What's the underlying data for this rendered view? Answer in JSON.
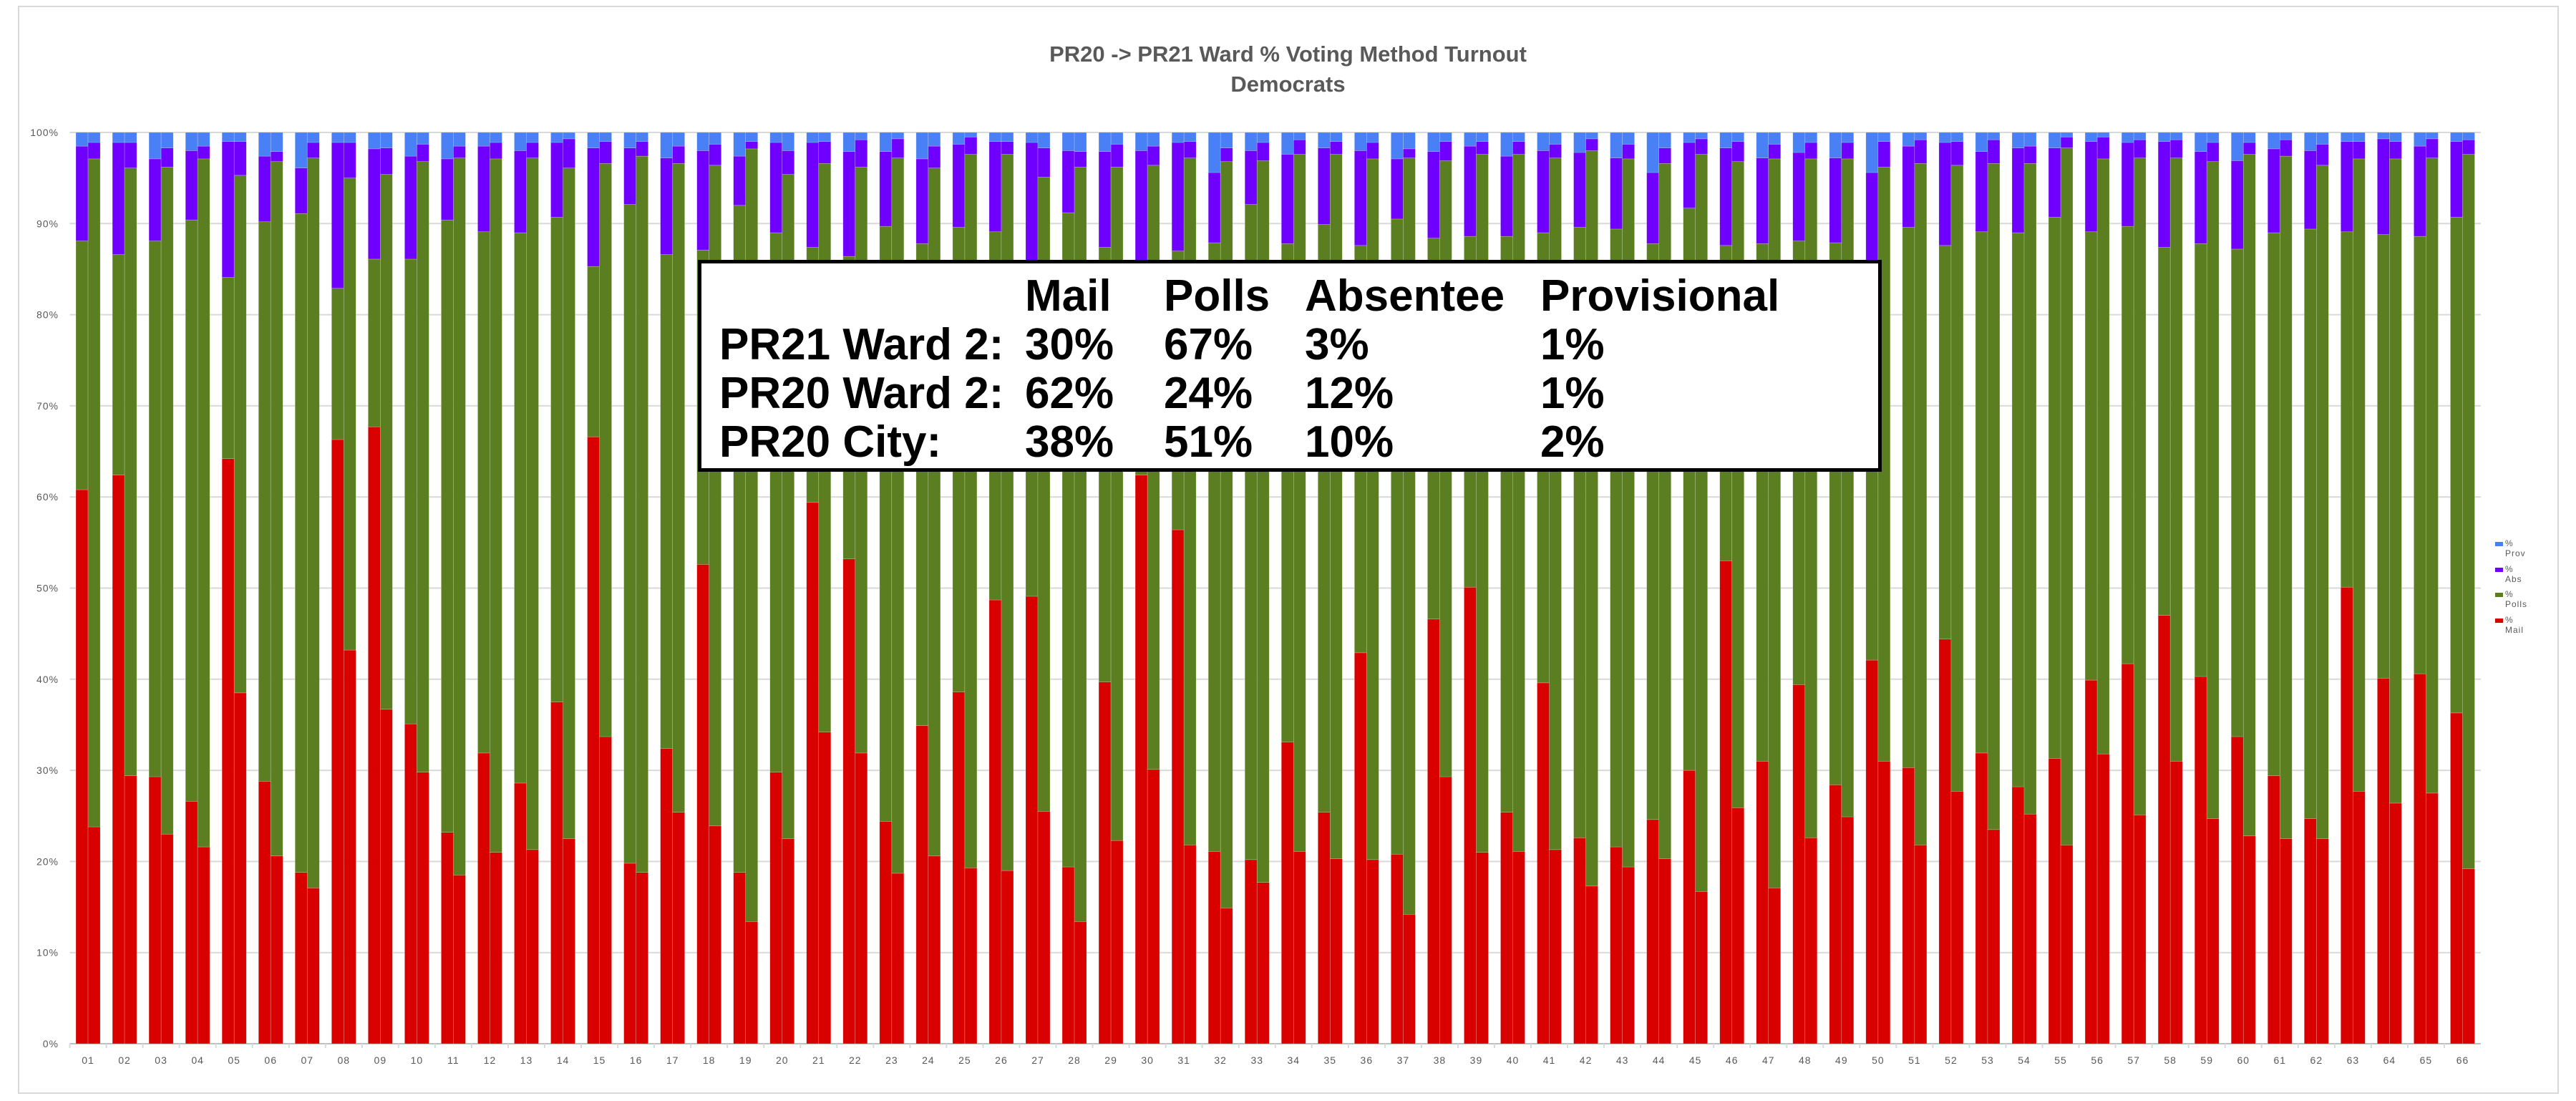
{
  "chart_data": {
    "type": "bar",
    "stacked": true,
    "title": "PR20 -> PR21 Ward % Voting Method Turnout",
    "subtitle": "Democrats",
    "xlabel": "",
    "ylabel": "",
    "ylim": [
      0,
      100
    ],
    "y_ticks": [
      "0%",
      "10%",
      "20%",
      "30%",
      "40%",
      "50%",
      "60%",
      "70%",
      "80%",
      "90%",
      "100%"
    ],
    "grid": true,
    "legend_position": "right",
    "bar_groups": [
      "PR20",
      "PR21"
    ],
    "categories": [
      "01",
      "02",
      "03",
      "04",
      "05",
      "06",
      "07",
      "08",
      "09",
      "10",
      "11",
      "12",
      "13",
      "14",
      "15",
      "16",
      "17",
      "18",
      "19",
      "20",
      "21",
      "22",
      "23",
      "24",
      "25",
      "26",
      "27",
      "28",
      "29",
      "30",
      "31",
      "32",
      "33",
      "34",
      "35",
      "36",
      "37",
      "38",
      "39",
      "40",
      "41",
      "42",
      "43",
      "44",
      "45",
      "46",
      "47",
      "48",
      "49",
      "50",
      "51",
      "52",
      "53",
      "54",
      "55",
      "56",
      "57",
      "58",
      "59",
      "60",
      "61",
      "62",
      "63",
      "64",
      "65",
      "66"
    ],
    "series": [
      {
        "name": "% Mail",
        "color": "#d90000",
        "values": [
          [
            60.8,
            23.8
          ],
          [
            62.4,
            29.4
          ],
          [
            29.3,
            23.0
          ],
          [
            26.6,
            21.6
          ],
          [
            64.2,
            38.5
          ],
          [
            28.8,
            20.6
          ],
          [
            18.8,
            17.1
          ],
          [
            66.3,
            43.2
          ],
          [
            67.7,
            36.7
          ],
          [
            35.1,
            29.8
          ],
          [
            23.2,
            18.5
          ],
          [
            31.9,
            21.0
          ],
          [
            28.6,
            21.3
          ],
          [
            37.5,
            22.5
          ],
          [
            66.6,
            33.7
          ],
          [
            19.8,
            18.8
          ],
          [
            32.4,
            25.4
          ],
          [
            52.6,
            23.9
          ],
          [
            18.8,
            13.4
          ],
          [
            29.8,
            22.5
          ],
          [
            59.4,
            34.2
          ],
          [
            53.2,
            31.9
          ],
          [
            24.4,
            18.7
          ],
          [
            34.9,
            20.6
          ],
          [
            38.6,
            19.3
          ],
          [
            48.7,
            19.0
          ],
          [
            49.1,
            25.5
          ],
          [
            19.4,
            13.4
          ],
          [
            39.7,
            22.3
          ],
          [
            62.4,
            30.1
          ],
          [
            56.4,
            21.8
          ],
          [
            21.1,
            14.9
          ],
          [
            20.2,
            17.7
          ],
          [
            33.1,
            21.1
          ],
          [
            25.4,
            20.3
          ],
          [
            42.9,
            20.2
          ],
          [
            20.8,
            14.2
          ],
          [
            46.6,
            29.3
          ],
          [
            50.1,
            21.0
          ],
          [
            25.4,
            21.1
          ],
          [
            39.6,
            21.3
          ],
          [
            22.6,
            17.3
          ],
          [
            21.6,
            19.4
          ],
          [
            24.6,
            20.3
          ],
          [
            30.0,
            16.7
          ],
          [
            53.0,
            25.9
          ],
          [
            31.0,
            17.1
          ],
          [
            39.4,
            22.6
          ],
          [
            28.4,
            24.9
          ],
          [
            42.1,
            31.0
          ],
          [
            30.3,
            21.8
          ],
          [
            44.4,
            27.7
          ],
          [
            31.9,
            23.5
          ],
          [
            28.2,
            25.2
          ],
          [
            31.3,
            21.8
          ],
          [
            39.9,
            31.8
          ],
          [
            41.7,
            25.1
          ],
          [
            47.0,
            31.0
          ],
          [
            40.3,
            24.7
          ],
          [
            33.7,
            22.8
          ],
          [
            29.4,
            22.5
          ],
          [
            24.7,
            22.5
          ],
          [
            50.1,
            27.7
          ],
          [
            40.1,
            26.4
          ],
          [
            40.6,
            27.5
          ],
          [
            36.3,
            19.2
          ]
        ]
      },
      {
        "name": "% Polls",
        "color": "#5b7f20",
        "values": [
          [
            27.3,
            73.3
          ],
          [
            24.2,
            66.7
          ],
          [
            58.8,
            73.2
          ],
          [
            63.8,
            75.5
          ],
          [
            19.9,
            56.8
          ],
          [
            61.4,
            76.2
          ],
          [
            72.3,
            80.1
          ],
          [
            16.6,
            51.8
          ],
          [
            18.4,
            58.7
          ],
          [
            51.0,
            67.0
          ],
          [
            67.2,
            78.7
          ],
          [
            57.2,
            76.1
          ],
          [
            60.4,
            75.9
          ],
          [
            53.2,
            73.6
          ],
          [
            18.7,
            62.9
          ],
          [
            72.3,
            78.6
          ],
          [
            54.2,
            71.2
          ],
          [
            34.5,
            72.5
          ],
          [
            73.2,
            84.8
          ],
          [
            59.2,
            72.9
          ],
          [
            28.0,
            62.4
          ],
          [
            33.2,
            64.3
          ],
          [
            65.3,
            78.5
          ],
          [
            52.9,
            75.5
          ],
          [
            51.0,
            78.3
          ],
          [
            40.4,
            78.6
          ],
          [
            34.9,
            69.6
          ],
          [
            71.8,
            82.8
          ],
          [
            47.7,
            73.9
          ],
          [
            20.6,
            66.3
          ],
          [
            30.6,
            75.4
          ],
          [
            66.8,
            81.9
          ],
          [
            71.9,
            79.2
          ],
          [
            54.7,
            76.5
          ],
          [
            64.5,
            77.3
          ],
          [
            44.7,
            76.9
          ],
          [
            69.7,
            83.0
          ],
          [
            41.8,
            67.6
          ],
          [
            38.5,
            76.6
          ],
          [
            63.2,
            76.5
          ],
          [
            49.4,
            75.9
          ],
          [
            67.0,
            80.7
          ],
          [
            67.8,
            77.7
          ],
          [
            63.2,
            76.3
          ],
          [
            61.7,
            80.9
          ],
          [
            34.6,
            70.9
          ],
          [
            56.8,
            80.0
          ],
          [
            48.7,
            74.5
          ],
          [
            59.5,
            72.2
          ],
          [
            42.9,
            65.2
          ],
          [
            59.3,
            74.8
          ],
          [
            43.2,
            68.7
          ],
          [
            57.2,
            73.1
          ],
          [
            60.8,
            71.4
          ],
          [
            59.4,
            76.5
          ],
          [
            49.2,
            65.3
          ],
          [
            48.0,
            72.1
          ],
          [
            40.4,
            66.2
          ],
          [
            47.5,
            72.1
          ],
          [
            53.5,
            74.8
          ],
          [
            59.6,
            74.9
          ],
          [
            64.7,
            73.9
          ],
          [
            39.0,
            69.4
          ],
          [
            48.7,
            70.7
          ],
          [
            48.0,
            69.7
          ],
          [
            54.4,
            78.4
          ]
        ]
      },
      {
        "name": "% Abs",
        "color": "#6f00ff",
        "values": [
          [
            10.4,
            1.8
          ],
          [
            12.3,
            2.8
          ],
          [
            9.0,
            2.1
          ],
          [
            7.6,
            1.4
          ],
          [
            14.9,
            3.7
          ],
          [
            7.2,
            1.1
          ],
          [
            5.0,
            1.7
          ],
          [
            16.0,
            3.9
          ],
          [
            12.1,
            2.9
          ],
          [
            11.3,
            1.9
          ],
          [
            6.7,
            1.3
          ],
          [
            9.4,
            1.8
          ],
          [
            9.0,
            1.7
          ],
          [
            8.2,
            3.2
          ],
          [
            13.0,
            2.4
          ],
          [
            6.2,
            1.6
          ],
          [
            10.6,
            1.9
          ],
          [
            10.9,
            2.3
          ],
          [
            5.4,
            0.8
          ],
          [
            9.9,
            2.6
          ],
          [
            11.5,
            2.4
          ],
          [
            11.5,
            3.0
          ],
          [
            8.2,
            2.1
          ],
          [
            9.3,
            2.4
          ],
          [
            9.1,
            1.9
          ],
          [
            9.9,
            1.4
          ],
          [
            14.9,
            3.2
          ],
          [
            6.8,
            1.7
          ],
          [
            10.5,
            2.5
          ],
          [
            15.0,
            2.1
          ],
          [
            11.9,
            1.8
          ],
          [
            7.7,
            1.5
          ],
          [
            5.9,
            2.0
          ],
          [
            9.8,
            1.6
          ],
          [
            8.4,
            1.4
          ],
          [
            10.4,
            1.8
          ],
          [
            6.6,
            1.0
          ],
          [
            9.5,
            2.1
          ],
          [
            9.9,
            1.4
          ],
          [
            8.8,
            1.4
          ],
          [
            9.0,
            1.5
          ],
          [
            8.2,
            1.3
          ],
          [
            7.8,
            1.6
          ],
          [
            7.8,
            1.7
          ],
          [
            7.2,
            1.7
          ],
          [
            10.7,
            2.2
          ],
          [
            9.4,
            1.6
          ],
          [
            9.7,
            1.8
          ],
          [
            9.3,
            1.8
          ],
          [
            10.6,
            2.8
          ],
          [
            8.9,
            2.6
          ],
          [
            11.3,
            2.6
          ],
          [
            8.8,
            2.6
          ],
          [
            9.3,
            1.9
          ],
          [
            7.6,
            1.2
          ],
          [
            9.9,
            2.4
          ],
          [
            9.2,
            2.0
          ],
          [
            11.6,
            2.0
          ],
          [
            10.1,
            2.1
          ],
          [
            9.7,
            1.3
          ],
          [
            9.2,
            1.8
          ],
          [
            8.6,
            2.3
          ],
          [
            9.9,
            1.9
          ],
          [
            10.5,
            1.9
          ],
          [
            9.9,
            2.1
          ],
          [
            8.3,
            1.6
          ]
        ]
      },
      {
        "name": "% Prov",
        "color": "#4a80f5",
        "values": [
          [
            1.5,
            1.1
          ],
          [
            1.1,
            1.1
          ],
          [
            2.9,
            1.7
          ],
          [
            2.0,
            1.5
          ],
          [
            1.0,
            1.0
          ],
          [
            2.6,
            2.1
          ],
          [
            3.9,
            1.1
          ],
          [
            1.1,
            1.1
          ],
          [
            1.8,
            1.7
          ],
          [
            2.6,
            1.3
          ],
          [
            2.9,
            1.5
          ],
          [
            1.5,
            1.1
          ],
          [
            2.0,
            1.1
          ],
          [
            1.1,
            0.7
          ],
          [
            1.7,
            1.0
          ],
          [
            1.7,
            1.0
          ],
          [
            2.8,
            1.5
          ],
          [
            2.0,
            1.3
          ],
          [
            2.6,
            1.0
          ],
          [
            1.1,
            2.0
          ],
          [
            1.1,
            1.0
          ],
          [
            2.1,
            0.8
          ],
          [
            2.1,
            0.7
          ],
          [
            2.9,
            1.5
          ],
          [
            1.3,
            0.5
          ],
          [
            1.0,
            1.0
          ],
          [
            1.1,
            1.7
          ],
          [
            2.0,
            2.1
          ],
          [
            2.1,
            1.3
          ],
          [
            2.0,
            1.5
          ],
          [
            1.1,
            1.0
          ],
          [
            4.4,
            1.7
          ],
          [
            2.0,
            1.1
          ],
          [
            2.4,
            0.8
          ],
          [
            1.7,
            1.0
          ],
          [
            2.0,
            1.1
          ],
          [
            2.9,
            1.8
          ],
          [
            2.1,
            1.0
          ],
          [
            1.5,
            1.0
          ],
          [
            2.6,
            1.0
          ],
          [
            2.0,
            1.3
          ],
          [
            2.2,
            0.7
          ],
          [
            2.8,
            1.3
          ],
          [
            4.4,
            1.7
          ],
          [
            1.1,
            0.7
          ],
          [
            1.7,
            1.0
          ],
          [
            2.8,
            1.3
          ],
          [
            2.2,
            1.1
          ],
          [
            2.8,
            1.1
          ],
          [
            4.4,
            1.0
          ],
          [
            1.5,
            0.8
          ],
          [
            1.1,
            1.0
          ],
          [
            2.1,
            0.8
          ],
          [
            1.7,
            1.5
          ],
          [
            1.7,
            0.5
          ],
          [
            1.0,
            0.5
          ],
          [
            1.1,
            0.8
          ],
          [
            1.0,
            0.8
          ],
          [
            2.1,
            1.1
          ],
          [
            3.1,
            1.1
          ],
          [
            1.8,
            0.8
          ],
          [
            2.0,
            1.3
          ],
          [
            1.0,
            1.0
          ],
          [
            0.7,
            1.0
          ],
          [
            1.5,
            0.7
          ],
          [
            1.0,
            0.8
          ]
        ]
      }
    ],
    "legend": [
      "% Prov",
      "% Abs",
      "% Polls",
      "% Mail"
    ],
    "annotation_table": {
      "header": [
        "",
        "Mail",
        "Polls",
        "Absentee",
        "Provisional"
      ],
      "rows": [
        [
          "PR21 Ward 2:",
          "30%",
          "67%",
          "3%",
          "1%"
        ],
        [
          "PR20 Ward 2:",
          "62%",
          "24%",
          "12%",
          "1%"
        ],
        [
          "PR20 City:",
          "38%",
          "51%",
          "10%",
          "2%"
        ]
      ]
    }
  }
}
